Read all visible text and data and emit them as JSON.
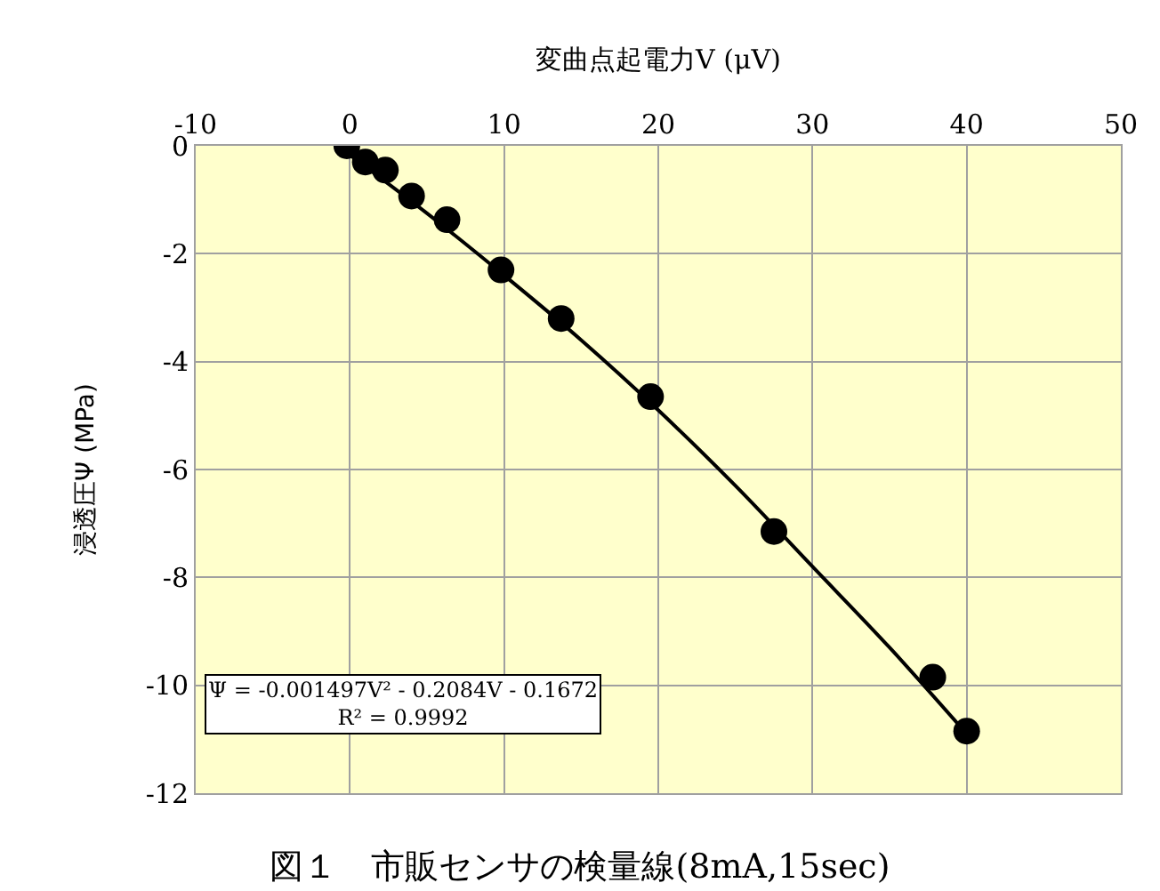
{
  "chart_data": {
    "type": "scatter",
    "title": "図１　市販センサの検量線(8mA,15sec)",
    "xlabel": "変曲点起電力V (μV)",
    "ylabel": "浸透圧Ψ (MPa)",
    "annotations": [
      "Ψ = -0.001497V² - 0.2084V - 0.1672",
      "R² = 0.9992"
    ],
    "series": [
      {
        "color": "#000000",
        "x": [
          -0.2,
          1,
          2.3,
          4,
          6.3,
          9.8,
          13.7,
          19.5,
          27.5,
          37.8,
          40
        ],
        "values": [
          0,
          -0.3,
          -0.45,
          -0.93,
          -1.37,
          -2.3,
          -3.2,
          -4.65,
          -7.15,
          -9.85,
          -10.85
        ]
      },
      {
        "type": "line",
        "marker": "none",
        "color": "#000000",
        "x": [
          0,
          5,
          10,
          15,
          20,
          25,
          30,
          35,
          40
        ],
        "values": [
          -0.17,
          -1.25,
          -2.4,
          -3.6,
          -4.9,
          -6.3,
          -7.8,
          -9.3,
          -10.9
        ]
      }
    ],
    "marker": "circle",
    "line_style": "solid",
    "xlim": [
      -10,
      50
    ],
    "xticks": [
      -10,
      0,
      10,
      20,
      30,
      40,
      50
    ],
    "ylim": [
      -12,
      0
    ],
    "yticks": [
      0,
      -2,
      -4,
      -6,
      -8,
      -10,
      -12
    ],
    "grid": true
  }
}
